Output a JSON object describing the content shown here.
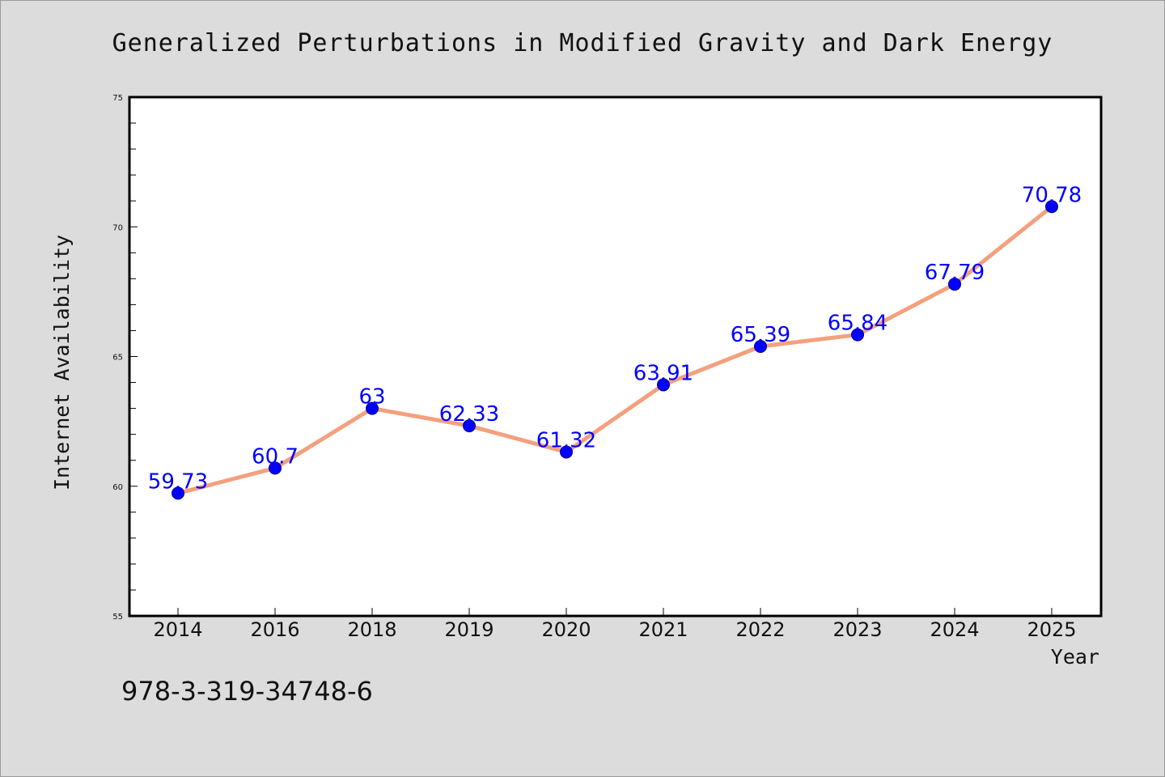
{
  "colors": {
    "background": "#dcdcdc",
    "plot_background": "#ffffff",
    "line": "#f4a07e",
    "marker": "#0000ff",
    "data_label": "#0000ff",
    "text": "#111111"
  },
  "footer": {
    "isbn": "978-3-319-34748-6"
  },
  "chart_data": {
    "type": "line",
    "title": "Generalized Perturbations in Modified Gravity and Dark Energy",
    "xlabel": "Year",
    "ylabel": "Internet Availability",
    "categories": [
      "2014",
      "2016",
      "2018",
      "2019",
      "2020",
      "2021",
      "2022",
      "2023",
      "2024",
      "2025"
    ],
    "series": [
      {
        "values": [
          59.73,
          60.7,
          63,
          62.33,
          61.32,
          63.91,
          65.39,
          65.84,
          67.79,
          70.78
        ],
        "labels": [
          "59.73",
          "60.7",
          "63",
          "62.33",
          "61.32",
          "63.91",
          "65.39",
          "65.84",
          "67.79",
          "70.78"
        ]
      }
    ],
    "ylim": [
      55,
      75
    ],
    "yticks": [
      55,
      60,
      65,
      70,
      75
    ],
    "y_minor_step": 1,
    "grid": false,
    "legend": "none"
  }
}
